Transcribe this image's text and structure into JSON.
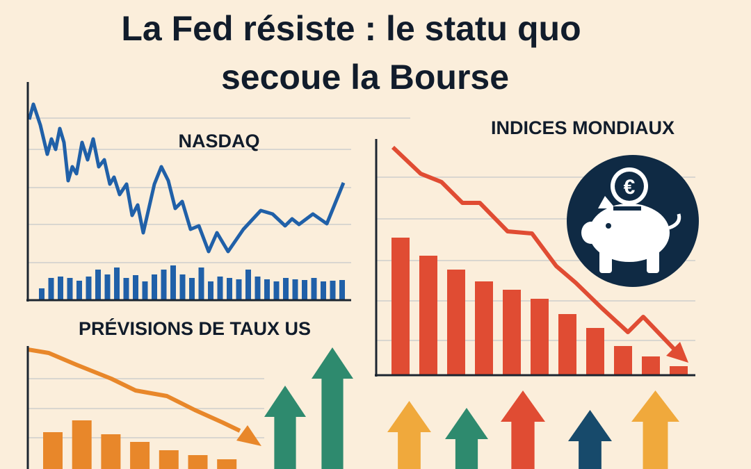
{
  "header": {
    "title_lines": [
      "La Fed résiste : le statu quo",
      "secoue la Bourse"
    ]
  },
  "panels": {
    "nasdaq": "NASDAQ",
    "indices": "INDICES MONDIAUX",
    "rates": "PRÉVISIONS DE TAUX US"
  },
  "icon": {
    "coin": "€"
  }
}
